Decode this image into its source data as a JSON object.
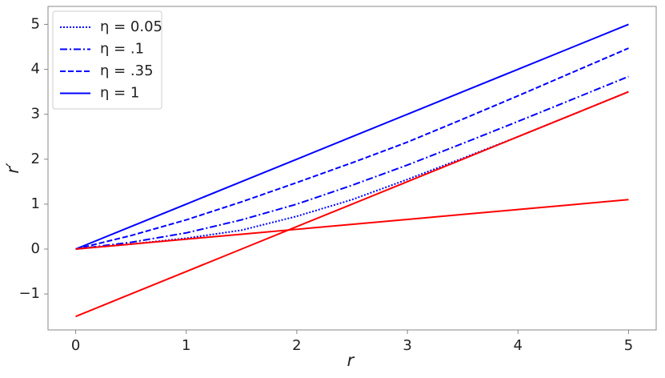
{
  "chart_data": {
    "type": "line",
    "xlabel": "r",
    "ylabel": "r′",
    "x": [
      0,
      0.5,
      1,
      1.5,
      2,
      2.5,
      3,
      3.5,
      4,
      4.5,
      5
    ],
    "series": [
      {
        "name": "η = 0.05",
        "color": "#0000ff",
        "linestyle": "dotted",
        "values": [
          0,
          0.11,
          0.24,
          0.42,
          0.73,
          1.1,
          1.55,
          2.02,
          2.5,
          3.0,
          3.5
        ]
      },
      {
        "name": "η = .1",
        "color": "#0000ff",
        "linestyle": "dashdot",
        "values": [
          0,
          0.15,
          0.36,
          0.65,
          1.0,
          1.42,
          1.87,
          2.35,
          2.84,
          3.34,
          3.84
        ]
      },
      {
        "name": "η = .35",
        "color": "#0000ff",
        "linestyle": "dashed",
        "values": [
          0,
          0.3,
          0.65,
          1.05,
          1.48,
          1.92,
          2.38,
          2.89,
          3.41,
          3.94,
          4.47
        ]
      },
      {
        "name": "η = 1",
        "color": "#0000ff",
        "linestyle": "solid",
        "values": [
          0,
          0.5,
          1,
          1.5,
          2,
          2.5,
          3,
          3.5,
          4,
          4.5,
          5
        ]
      },
      {
        "color": "#ff0000",
        "linestyle": "solid",
        "values": [
          -1.5,
          -1,
          -0.5,
          0,
          0.5,
          1,
          1.5,
          2,
          2.5,
          3,
          3.5
        ]
      },
      {
        "color": "#ff0000",
        "linestyle": "solid",
        "values": [
          0,
          0.11,
          0.22,
          0.33,
          0.44,
          0.55,
          0.66,
          0.77,
          0.88,
          0.99,
          1.1
        ]
      }
    ],
    "xlim": [
      -0.25,
      5.25
    ],
    "ylim": [
      -1.8,
      5.4
    ],
    "xticks": [
      0,
      1,
      2,
      3,
      4,
      5
    ],
    "yticks": [
      {
        "value": -1,
        "label": "−1"
      },
      0,
      1,
      2,
      3,
      4,
      5
    ],
    "legend": "upper-left",
    "grid": false
  }
}
